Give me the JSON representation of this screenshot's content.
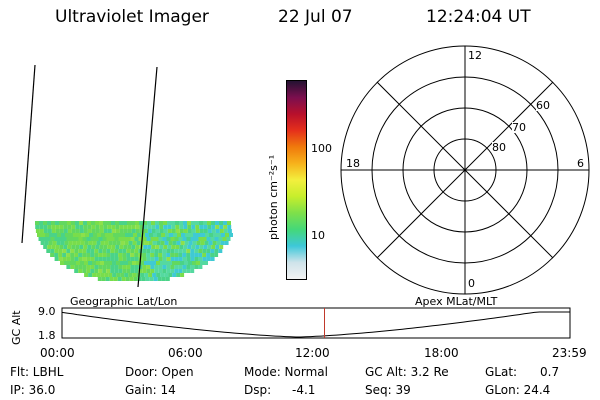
{
  "header": {
    "instrument": "Ultraviolet Imager",
    "date": "22 Jul 07",
    "time": "12:24:04 UT"
  },
  "colorbar": {
    "label": "photon cm⁻²s⁻¹",
    "ticks": [
      "100",
      "10"
    ],
    "stops": [
      "#f2f2f2",
      "#cfe3ea",
      "#3ec8d9",
      "#44d879",
      "#7ee04a",
      "#c7ee2c",
      "#f3ef3e",
      "#f7b21b",
      "#f07a0c",
      "#e5301b",
      "#b8102c",
      "#7b0f4e",
      "#241232"
    ]
  },
  "polar": {
    "labels": {
      "top": "12",
      "left": "18",
      "right": "6",
      "bottom": "0"
    },
    "ring_labels": [
      "60",
      "70",
      "80"
    ]
  },
  "image_panel": {
    "colors": [
      "#4ad388",
      "#62d85f",
      "#79dd4b",
      "#3fcad3",
      "#55d9a0",
      "#8de04a"
    ]
  },
  "timeline": {
    "left_label": "Geographic Lat/Lon",
    "right_label": "Apex MLat/MLT",
    "y_axis_label": "GC Alt",
    "y_ticks": [
      "9.0",
      "1.8"
    ],
    "x_ticks": [
      "00:00",
      "06:00",
      "12:00",
      "18:00",
      "23:59"
    ],
    "marker_color": "#c0392b"
  },
  "info": {
    "flt": "Flt: LBHL",
    "ip": "IP: 36.0",
    "door": "Door: Open",
    "gain": "Gain: 14",
    "mode": "Mode: Normal",
    "dsp_label": "Dsp:",
    "dsp_value": "-4.1",
    "gc_alt": "GC Alt: 3.2 Re",
    "seq": "Seq: 39",
    "glat_label": "GLat:",
    "glat_value": "0.7",
    "glon": "GLon: 24.4"
  }
}
